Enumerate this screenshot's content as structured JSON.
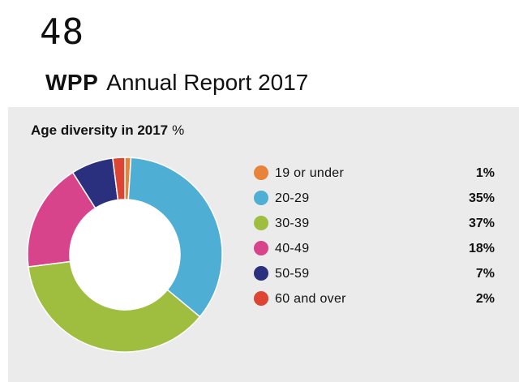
{
  "header": {
    "page_number": "48",
    "brand": "WPP",
    "report_title": "Annual Report 2017"
  },
  "chart_data": {
    "type": "pie",
    "donut": true,
    "title": "Age diversity in 2017",
    "unit": "%",
    "categories": [
      "19 or under",
      "20-29",
      "30-39",
      "40-49",
      "50-59",
      "60 and over"
    ],
    "values": [
      1,
      35,
      37,
      18,
      7,
      2
    ],
    "value_labels": [
      "1%",
      "35%",
      "37%",
      "18%",
      "7%",
      "2%"
    ],
    "colors": [
      "#e8833a",
      "#4eaed3",
      "#9fbe3f",
      "#d8448b",
      "#2a2f7e",
      "#dd4433"
    ],
    "legend_position": "right"
  }
}
